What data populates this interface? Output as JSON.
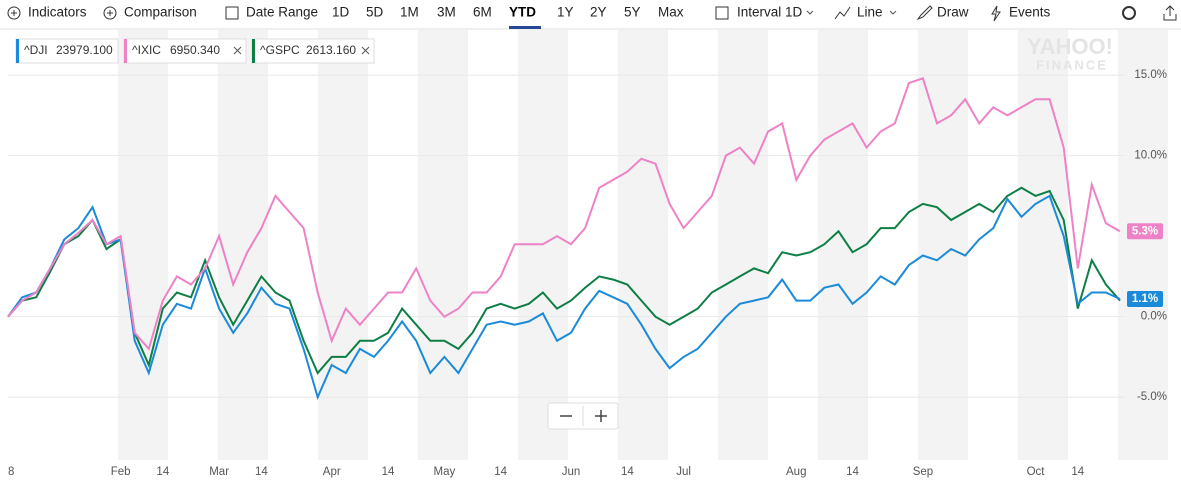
{
  "toolbar": {
    "items": [
      "Indicators",
      "Comparison",
      "Date Range",
      "1D",
      "5D",
      "1M",
      "3M",
      "6M",
      "YTD",
      "1Y",
      "2Y",
      "5Y",
      "Max",
      "Interval 1D",
      "Line",
      "Draw",
      "Events"
    ],
    "selected": "YTD"
  },
  "watermark": [
    "YAHOO!",
    "FINANCE"
  ],
  "chart_data": {
    "type": "line",
    "categories": [
      "8",
      null,
      null,
      null,
      null,
      null,
      null,
      null,
      "Feb",
      null,
      null,
      "14",
      null,
      null,
      null,
      "Mar",
      null,
      null,
      "14",
      null,
      null,
      null,
      null,
      "Apr",
      null,
      null,
      null,
      "14",
      null,
      null,
      null,
      "May",
      null,
      null,
      null,
      "14",
      null,
      null,
      null,
      null,
      "Jun",
      null,
      null,
      null,
      "14",
      null,
      null,
      null,
      "Jul",
      null,
      null,
      null,
      null,
      null,
      null,
      null,
      "Aug",
      null,
      null,
      null,
      "14",
      null,
      null,
      null,
      null,
      "Sep",
      null,
      null,
      null,
      null,
      null,
      null,
      null,
      "Oct",
      null,
      null,
      "14",
      null,
      null,
      null
    ],
    "series": [
      {
        "name": "^DJI",
        "quote": "23979.100",
        "color": "#1a8ad9",
        "values": [
          0,
          1.2,
          1.5,
          3,
          4.8,
          5.5,
          6.8,
          4.5,
          4.8,
          -1.5,
          -3.5,
          -0.5,
          0.8,
          0.5,
          3,
          0.5,
          -1,
          0.2,
          1.8,
          0.8,
          0.5,
          -2,
          -5,
          -3,
          -3.5,
          -2,
          -2.5,
          -1.5,
          -0.3,
          -1.5,
          -3.5,
          -2.5,
          -3.5,
          -2,
          -0.5,
          -0.3,
          -0.5,
          -0.3,
          0.2,
          -1.5,
          -1,
          0.5,
          1.6,
          1.2,
          0.8,
          -0.5,
          -2,
          -3.2,
          -2.5,
          -2,
          -1,
          0,
          0.8,
          1,
          1.2,
          2.3,
          1,
          1,
          1.8,
          2,
          0.8,
          1.5,
          2.5,
          2,
          3.2,
          3.8,
          3.5,
          4.2,
          3.8,
          4.8,
          5.5,
          7.3,
          6.2,
          7,
          7.5,
          5,
          0.8,
          1.5,
          1.5,
          1.1
        ],
        "value_labels": [
          null,
          null,
          null,
          null,
          null,
          null,
          null,
          null,
          null,
          null,
          null,
          null,
          null,
          null,
          null,
          null,
          null,
          null,
          null,
          null,
          null,
          null,
          null,
          null,
          null,
          null,
          null,
          null,
          null,
          null,
          null,
          null,
          null,
          null,
          null,
          null,
          null,
          null,
          null,
          null,
          null,
          null,
          null,
          null,
          null,
          null,
          null,
          null,
          null,
          null,
          null,
          null,
          null,
          null,
          null,
          null,
          null,
          null,
          null,
          null,
          null,
          null,
          null,
          null,
          null,
          null,
          null,
          null,
          null,
          null,
          null,
          null,
          null,
          null,
          null,
          null,
          null,
          null,
          null,
          "1.1%"
        ]
      },
      {
        "name": "^IXIC",
        "quote": "6950.340",
        "color": "#ee82c6",
        "values": [
          0,
          1,
          1.5,
          3,
          4.5,
          5.2,
          6,
          4.5,
          5,
          -1,
          -2,
          1,
          2.5,
          2,
          3,
          5,
          2,
          4,
          5.5,
          7.5,
          6.5,
          5.5,
          1.5,
          -1.5,
          0.5,
          -0.5,
          0.5,
          1.5,
          1.5,
          3,
          1,
          0,
          0.5,
          1.5,
          1.5,
          2.5,
          4.5,
          4.5,
          4.5,
          5,
          4.5,
          5.5,
          8,
          8.5,
          9,
          9.8,
          9.5,
          7,
          5.5,
          6.5,
          7.5,
          10,
          10.5,
          9.5,
          11.5,
          12,
          8.5,
          10,
          11,
          11.5,
          12,
          10.5,
          11.5,
          12,
          14.5,
          14.8,
          12,
          12.5,
          13.5,
          12,
          13,
          12.5,
          13,
          13.5,
          13.5,
          10.5,
          3,
          8.2,
          5.8,
          5.3
        ],
        "value_labels": [
          null,
          null,
          null,
          null,
          null,
          null,
          null,
          null,
          null,
          null,
          null,
          null,
          null,
          null,
          null,
          null,
          null,
          null,
          null,
          null,
          null,
          null,
          null,
          null,
          null,
          null,
          null,
          null,
          null,
          null,
          null,
          null,
          null,
          null,
          null,
          null,
          null,
          null,
          null,
          null,
          null,
          null,
          null,
          null,
          null,
          null,
          null,
          null,
          null,
          null,
          null,
          null,
          null,
          null,
          null,
          null,
          null,
          null,
          null,
          null,
          null,
          null,
          null,
          null,
          null,
          null,
          null,
          null,
          null,
          null,
          null,
          null,
          null,
          null,
          null,
          null,
          null,
          null,
          null,
          "5.3%"
        ]
      },
      {
        "name": "^GSPC",
        "quote": "2613.160",
        "color": "#0d7f45",
        "values": [
          0,
          1,
          1.2,
          2.8,
          4.5,
          5,
          6,
          4.2,
          4.8,
          -1,
          -3,
          0.5,
          1.5,
          1.2,
          3.5,
          1.2,
          -0.5,
          1,
          2.5,
          1.5,
          1,
          -1.5,
          -3.5,
          -2.5,
          -2.5,
          -1.5,
          -1.5,
          -1,
          0.5,
          -0.5,
          -1.5,
          -1.5,
          -2,
          -1,
          0.5,
          0.8,
          0.5,
          0.8,
          1.5,
          0.5,
          1,
          1.8,
          2.5,
          2.3,
          2,
          1,
          0,
          -0.5,
          0,
          0.5,
          1.5,
          2,
          2.5,
          3,
          2.7,
          4,
          3.8,
          4,
          4.5,
          5.3,
          4,
          4.5,
          5.5,
          5.5,
          6.5,
          7,
          6.8,
          6,
          6.5,
          7,
          6.5,
          7.5,
          8,
          7.5,
          7.8,
          6,
          0.5,
          3.5,
          2,
          1
        ]
      }
    ],
    "ylim": [
      -8.9,
      17.8
    ],
    "yticks": [
      {
        "value": 15,
        "label": "15.0%"
      },
      {
        "value": 10,
        "label": "10.0%"
      },
      {
        "value": 0,
        "label": "0.0%"
      },
      {
        "value": -5,
        "label": "-5.0%"
      }
    ],
    "grid": true
  }
}
